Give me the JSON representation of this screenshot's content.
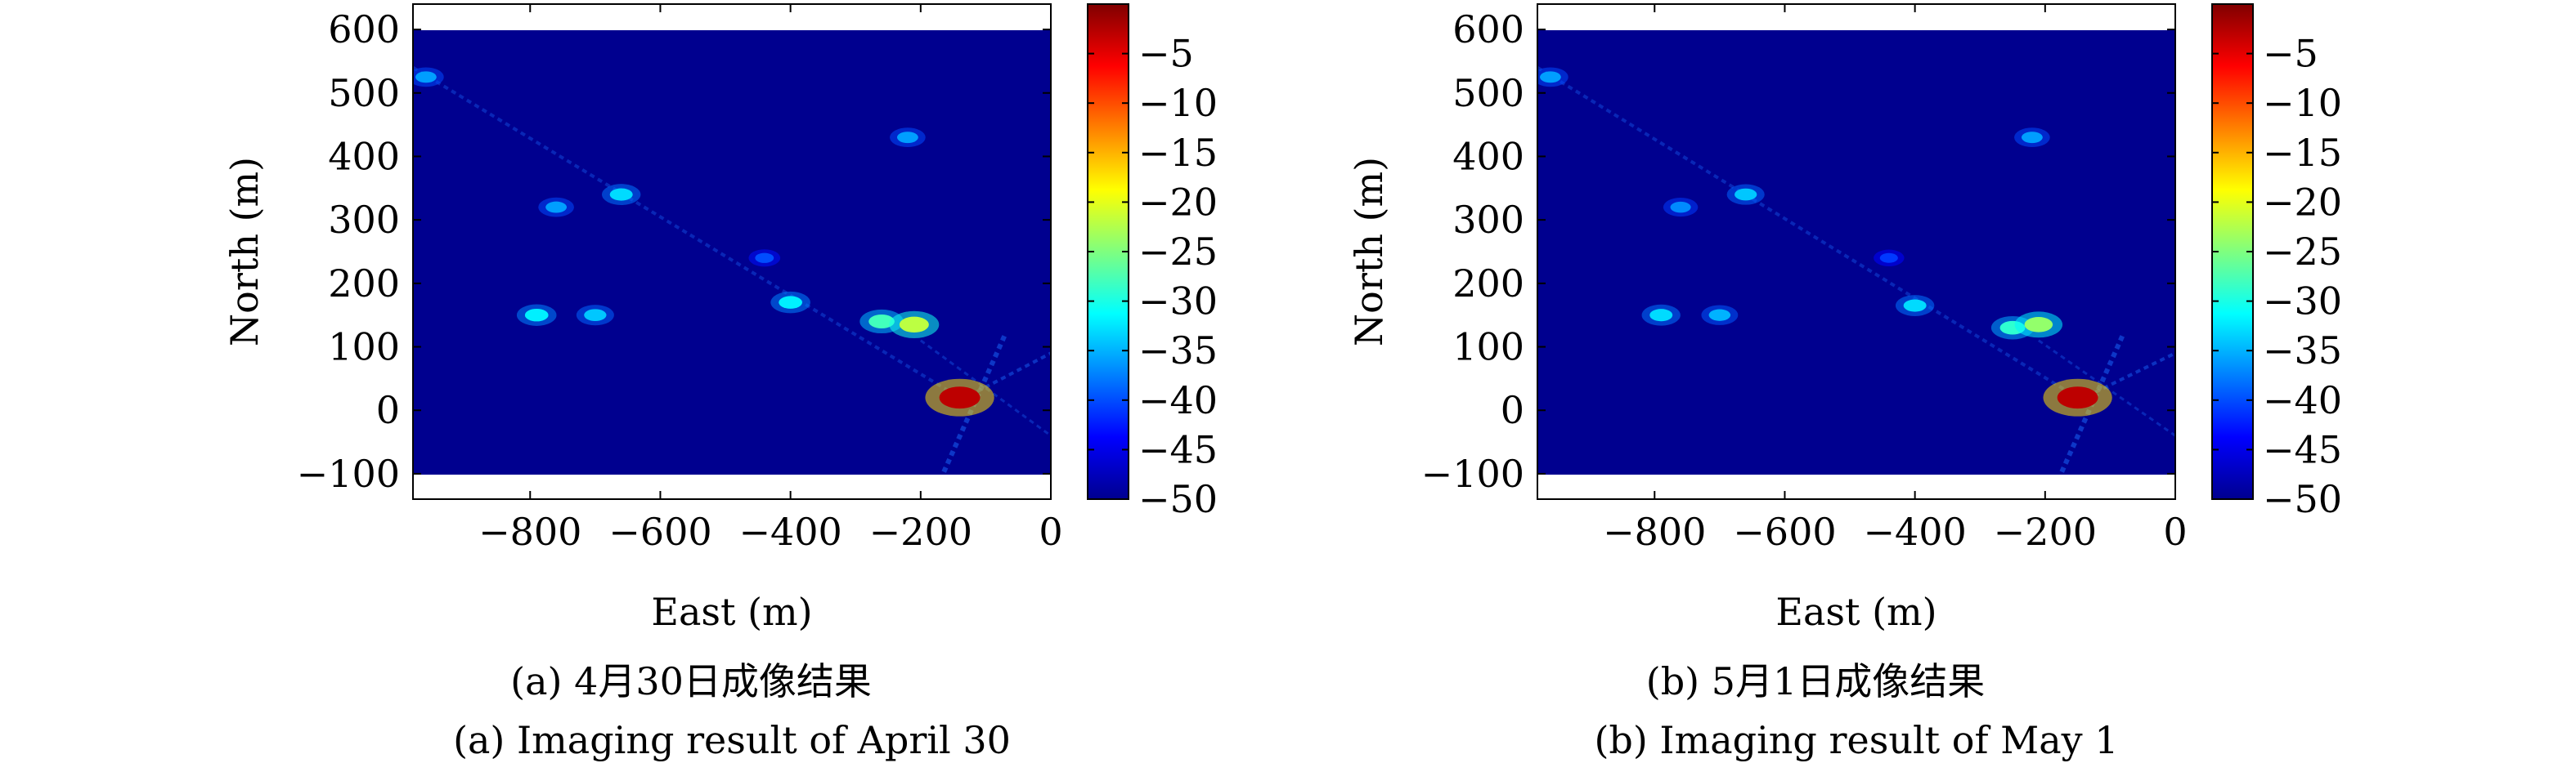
{
  "chart_data": [
    {
      "type": "heatmap",
      "panel_label": "(a)",
      "caption_zh": "(a) 4月30日成像结果",
      "caption_en": "(a) Imaging result of April 30",
      "xlabel": "East (m)",
      "ylabel": "North (m)",
      "xlim": [
        -980,
        0
      ],
      "ylim": [
        -140,
        640
      ],
      "data_ylim": [
        -100,
        600
      ],
      "xticks": [
        -800,
        -600,
        -400,
        -200,
        0
      ],
      "xtick_labels": [
        "−800",
        "−600",
        "−400",
        "−200",
        "0"
      ],
      "yticks": [
        -100,
        0,
        100,
        200,
        300,
        400,
        500,
        600
      ],
      "ytick_labels": [
        "−100",
        "0",
        "100",
        "200",
        "300",
        "400",
        "500",
        "600"
      ],
      "colorbar": {
        "colormap": "jet",
        "range": [
          -50,
          0
        ],
        "ticks": [
          -5,
          -10,
          -15,
          -20,
          -25,
          -30,
          -35,
          -40,
          -45,
          -50
        ],
        "tick_labels": [
          "−5",
          "−10",
          "−15",
          "−20",
          "−25",
          "−30",
          "−35",
          "−40",
          "−45",
          "−50"
        ]
      },
      "peak": {
        "east": -140,
        "north": 20,
        "value_db": 0
      },
      "hotspots": [
        {
          "east": -140,
          "north": 20,
          "value_db": -3
        },
        {
          "east": -210,
          "north": 135,
          "value_db": -22
        },
        {
          "east": -260,
          "north": 140,
          "value_db": -28
        },
        {
          "east": -400,
          "north": 170,
          "value_db": -32
        },
        {
          "east": -790,
          "north": 150,
          "value_db": -32
        },
        {
          "east": -700,
          "north": 150,
          "value_db": -34
        },
        {
          "east": -660,
          "north": 340,
          "value_db": -33
        },
        {
          "east": -760,
          "north": 320,
          "value_db": -36
        },
        {
          "east": -220,
          "north": 430,
          "value_db": -36
        },
        {
          "east": -960,
          "north": 525,
          "value_db": -36
        },
        {
          "east": -440,
          "north": 240,
          "value_db": -40
        }
      ]
    },
    {
      "type": "heatmap",
      "panel_label": "(b)",
      "caption_zh": "(b) 5月1日成像结果",
      "caption_en": "(b) Imaging result of May 1",
      "xlabel": "East (m)",
      "ylabel": "North (m)",
      "xlim": [
        -980,
        0
      ],
      "ylim": [
        -140,
        640
      ],
      "data_ylim": [
        -100,
        600
      ],
      "xticks": [
        -800,
        -600,
        -400,
        -200,
        0
      ],
      "xtick_labels": [
        "−800",
        "−600",
        "−400",
        "−200",
        "0"
      ],
      "yticks": [
        -100,
        0,
        100,
        200,
        300,
        400,
        500,
        600
      ],
      "ytick_labels": [
        "−100",
        "0",
        "100",
        "200",
        "300",
        "400",
        "500",
        "600"
      ],
      "colorbar": {
        "colormap": "jet",
        "range": [
          -50,
          0
        ],
        "ticks": [
          -5,
          -10,
          -15,
          -20,
          -25,
          -30,
          -35,
          -40,
          -45,
          -50
        ],
        "tick_labels": [
          "−5",
          "−10",
          "−15",
          "−20",
          "−25",
          "−30",
          "−35",
          "−40",
          "−45",
          "−50"
        ]
      },
      "peak": {
        "east": -150,
        "north": 20,
        "value_db": 0
      },
      "hotspots": [
        {
          "east": -150,
          "north": 20,
          "value_db": -3
        },
        {
          "east": -210,
          "north": 135,
          "value_db": -24
        },
        {
          "east": -250,
          "north": 130,
          "value_db": -29
        },
        {
          "east": -400,
          "north": 165,
          "value_db": -33
        },
        {
          "east": -790,
          "north": 150,
          "value_db": -33
        },
        {
          "east": -700,
          "north": 150,
          "value_db": -35
        },
        {
          "east": -660,
          "north": 340,
          "value_db": -34
        },
        {
          "east": -760,
          "north": 320,
          "value_db": -37
        },
        {
          "east": -220,
          "north": 430,
          "value_db": -36
        },
        {
          "east": -960,
          "north": 525,
          "value_db": -36
        },
        {
          "east": -440,
          "north": 240,
          "value_db": -41
        }
      ]
    }
  ]
}
